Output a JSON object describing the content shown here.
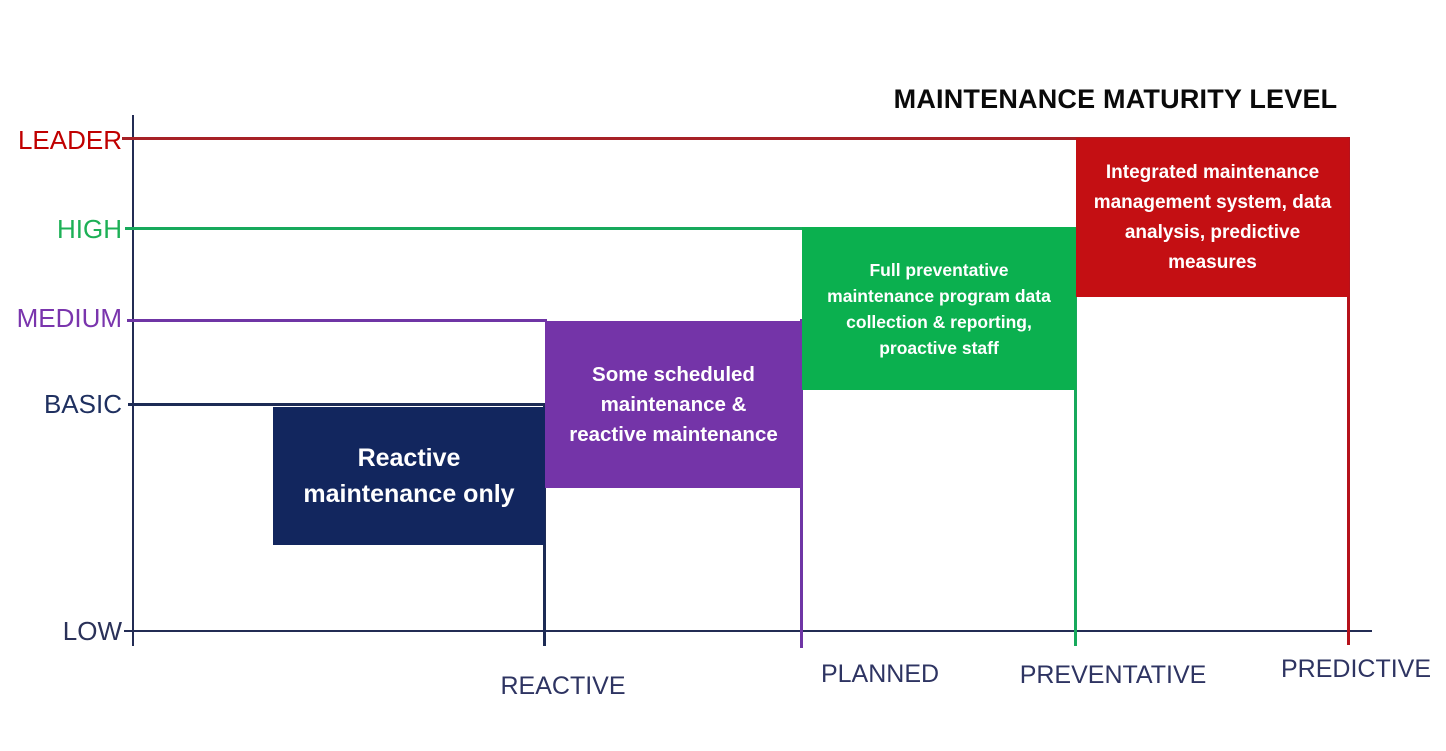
{
  "title": "MAINTENANCE MATURITY LEVEL",
  "chart_data": {
    "type": "bar",
    "title": "MAINTENANCE MATURITY LEVEL",
    "grid": false,
    "legend": false,
    "x_axis": {
      "categories": [
        "REACTIVE",
        "PLANNED",
        "PREVENTATIVE",
        "PREDICTIVE"
      ],
      "label_color": "#2e3462"
    },
    "y_axis_levels": [
      {
        "label": "LEADER",
        "color": "#c00000",
        "line_color": "#a62126"
      },
      {
        "label": "HIGH",
        "color": "#1db056",
        "line_color": "#17a95c"
      },
      {
        "label": "MEDIUM",
        "color": "#7a35ad",
        "line_color": "#6f35a5"
      },
      {
        "label": "BASIC",
        "color": "#1f3060",
        "line_color": "#1d2b55"
      },
      {
        "label": "LOW",
        "color": "#2a3158",
        "line_color": "#232c54"
      }
    ],
    "stages": [
      {
        "category": "REACTIVE",
        "maturity_level": "BASIC",
        "description": "Reactive maintenance only",
        "color": "#12265e",
        "text_color": "#ffffff"
      },
      {
        "category": "PLANNED",
        "maturity_level": "MEDIUM",
        "description": "Some scheduled maintenance & reactive maintenance",
        "color": "#7434a8",
        "text_color": "#ffffff"
      },
      {
        "category": "PREVENTATIVE",
        "maturity_level": "HIGH",
        "description": "Full preventative maintenance program data collection & reporting, proactive staff",
        "color": "#0bb04f",
        "text_color": "#ffffff"
      },
      {
        "category": "PREDICTIVE",
        "maturity_level": "LEADER",
        "description": "Integrated maintenance management system, data analysis, predictive measures",
        "color": "#c40f13",
        "text_color": "#ffffff"
      }
    ]
  }
}
